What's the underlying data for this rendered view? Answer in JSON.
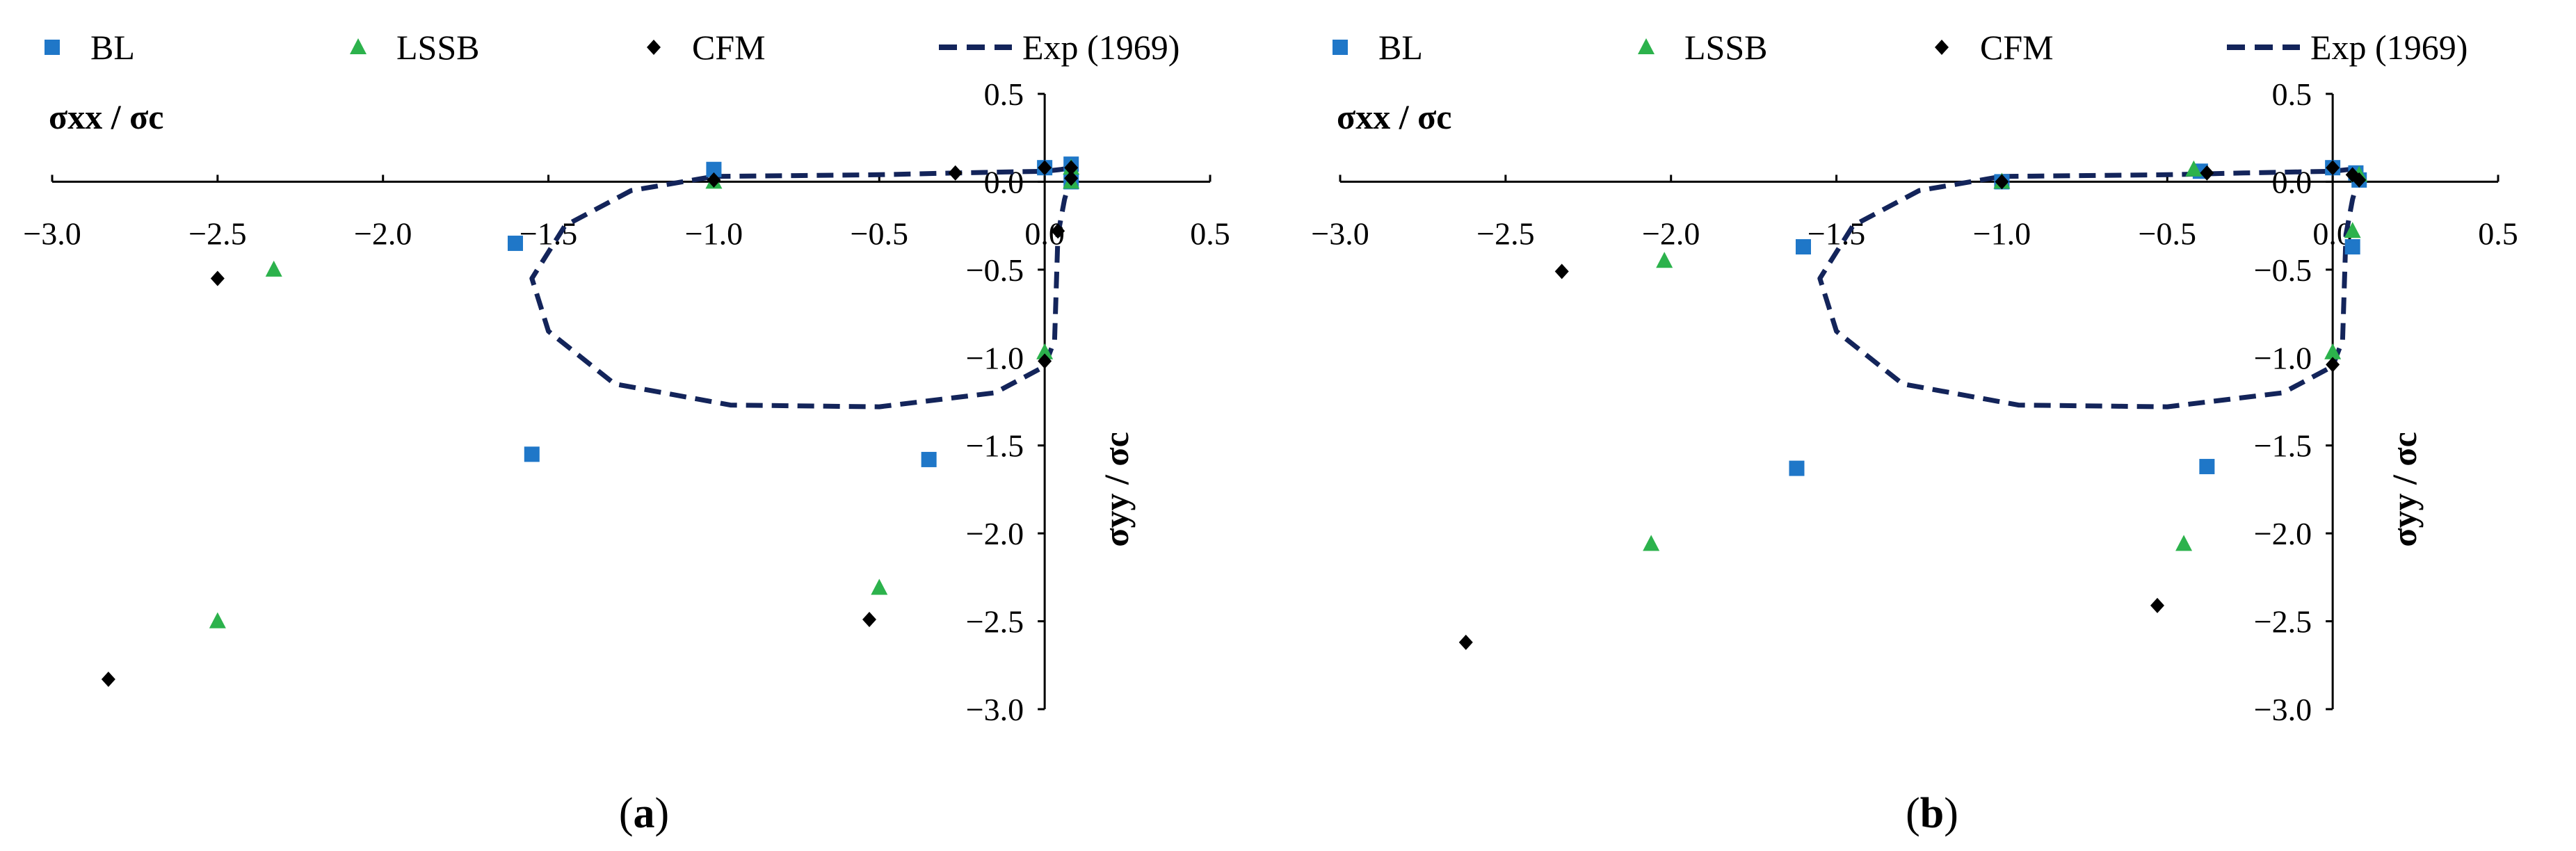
{
  "chart_data": [
    {
      "type": "scatter",
      "panel_label": "(a)",
      "panel_letter": "a",
      "xlabel": "σxx / σc",
      "ylabel": "σyy / σc",
      "xlim": [
        -3.0,
        0.5
      ],
      "ylim": [
        -3.0,
        0.5
      ],
      "x_ticks": [
        -3.0,
        -2.5,
        -2.0,
        -1.5,
        -1.0,
        -0.5,
        0.0,
        0.5
      ],
      "y_ticks": [
        0.5,
        0.0,
        -0.5,
        -1.0,
        -1.5,
        -2.0,
        -2.5,
        -3.0
      ],
      "tick_labels": {
        "x": [
          "−3.0",
          "−2.5",
          "−2.0",
          "−1.5",
          "−1.0",
          "−0.5",
          "0.0",
          "0.5"
        ],
        "y": [
          "0.5",
          "0.0",
          "−0.5",
          "−1.0",
          "−1.5",
          "−2.0",
          "−2.5",
          "−3.0"
        ]
      },
      "legend": [
        "BL",
        "LSSB",
        "CFM",
        "Exp (1969)"
      ],
      "series": [
        {
          "name": "BL",
          "kind": "marker",
          "marker": "square",
          "color": "#1f77c8",
          "x": [
            -1.6,
            -1.55,
            -1.0,
            -0.35,
            0.0,
            0.08,
            0.08
          ],
          "y": [
            -0.35,
            -1.55,
            0.07,
            -1.58,
            0.08,
            0.1,
            0.0
          ]
        },
        {
          "name": "LSSB",
          "kind": "marker",
          "marker": "triangle",
          "color": "#2cb24c",
          "x": [
            -2.33,
            -2.5,
            -1.0,
            -0.5,
            0.0,
            0.08,
            0.08
          ],
          "y": [
            -0.5,
            -2.5,
            0.0,
            -2.31,
            -0.97,
            0.08,
            0.0
          ]
        },
        {
          "name": "CFM",
          "kind": "marker",
          "marker": "diamond",
          "color": "#000000",
          "x": [
            -2.5,
            -2.83,
            -1.0,
            -0.53,
            -0.27,
            0.0,
            0.04,
            0.08,
            0.08,
            0.0
          ],
          "y": [
            -0.55,
            -2.83,
            0.01,
            -2.49,
            0.05,
            0.08,
            -0.28,
            0.08,
            0.02,
            -1.02
          ]
        },
        {
          "name": "Exp (1969)",
          "kind": "line",
          "style": "dashed",
          "color": "#13245a",
          "x": [
            -1.0,
            -0.5,
            -0.27,
            0.0,
            0.05,
            0.08,
            0.08,
            0.06,
            0.04,
            0.03,
            0.0,
            -0.15,
            -0.5,
            -0.95,
            -1.3,
            -1.5,
            -1.55,
            -1.45,
            -1.25,
            -1.0
          ],
          "y": [
            0.03,
            0.04,
            0.05,
            0.06,
            0.07,
            0.08,
            0.03,
            -0.1,
            -0.3,
            -0.9,
            -1.05,
            -1.2,
            -1.28,
            -1.27,
            -1.15,
            -0.85,
            -0.55,
            -0.25,
            -0.05,
            0.03
          ]
        }
      ]
    },
    {
      "type": "scatter",
      "panel_label": "(b)",
      "panel_letter": "b",
      "xlabel": "σxx / σc",
      "ylabel": "σyy / σc",
      "xlim": [
        -3.0,
        0.5
      ],
      "ylim": [
        -3.0,
        0.5
      ],
      "x_ticks": [
        -3.0,
        -2.5,
        -2.0,
        -1.5,
        -1.0,
        -0.5,
        0.0,
        0.5
      ],
      "y_ticks": [
        0.5,
        0.0,
        -0.5,
        -1.0,
        -1.5,
        -2.0,
        -2.5,
        -3.0
      ],
      "tick_labels": {
        "x": [
          "−3.0",
          "−2.5",
          "−2.0",
          "−1.5",
          "−1.0",
          "−0.5",
          "0.0",
          "0.5"
        ],
        "y": [
          "0.5",
          "0.0",
          "−0.5",
          "−1.0",
          "−1.5",
          "−2.0",
          "−2.5",
          "−3.0"
        ]
      },
      "legend": [
        "BL",
        "LSSB",
        "CFM",
        "Exp (1969)"
      ],
      "series": [
        {
          "name": "BL",
          "kind": "marker",
          "marker": "square",
          "color": "#1f77c8",
          "x": [
            -1.6,
            -1.62,
            -1.0,
            -0.4,
            -0.38,
            0.0,
            0.06,
            0.07,
            0.08
          ],
          "y": [
            -0.37,
            -1.63,
            0.0,
            0.06,
            -1.62,
            0.08,
            -0.37,
            0.05,
            0.01
          ]
        },
        {
          "name": "LSSB",
          "kind": "marker",
          "marker": "triangle",
          "color": "#2cb24c",
          "x": [
            -2.02,
            -2.06,
            -1.0,
            -0.42,
            -0.45,
            0.0,
            0.06,
            0.08
          ],
          "y": [
            -0.45,
            -2.06,
            0.0,
            0.07,
            -2.06,
            -0.97,
            -0.28,
            0.04
          ]
        },
        {
          "name": "CFM",
          "kind": "marker",
          "marker": "diamond",
          "color": "#000000",
          "x": [
            -2.33,
            -2.62,
            -1.0,
            -0.38,
            -0.53,
            0.0,
            0.06,
            0.08,
            0.0
          ],
          "y": [
            -0.51,
            -2.62,
            0.0,
            0.05,
            -2.41,
            0.08,
            0.04,
            0.01,
            -1.04
          ]
        },
        {
          "name": "Exp (1969)",
          "kind": "line",
          "style": "dashed",
          "color": "#13245a",
          "x": [
            -1.0,
            -0.5,
            -0.27,
            0.0,
            0.05,
            0.08,
            0.08,
            0.06,
            0.04,
            0.03,
            0.0,
            -0.15,
            -0.5,
            -0.95,
            -1.3,
            -1.5,
            -1.55,
            -1.45,
            -1.25,
            -1.0
          ],
          "y": [
            0.03,
            0.04,
            0.05,
            0.06,
            0.07,
            0.08,
            0.03,
            -0.1,
            -0.3,
            -0.9,
            -1.05,
            -1.2,
            -1.28,
            -1.27,
            -1.15,
            -0.85,
            -0.55,
            -0.25,
            -0.05,
            0.03
          ]
        }
      ]
    }
  ]
}
